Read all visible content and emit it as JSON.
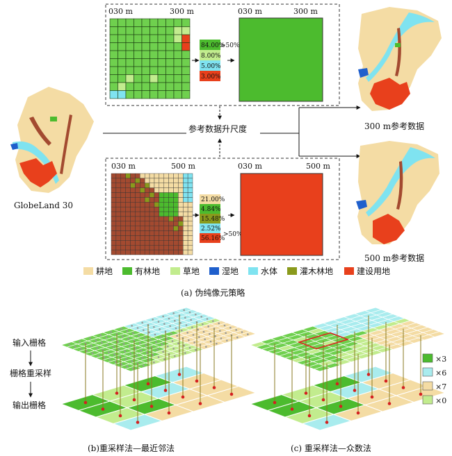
{
  "colors": {
    "cropland": "#f4dca4",
    "forest": "#4cbb2e",
    "grassland": "#c2ec8e",
    "wetland": "#1f5fcc",
    "water": "#7fe3f0",
    "shrubland": "#8a9a1c",
    "builtup": "#e8401c",
    "brown": "#a34a30",
    "grid_top": "#6fd04e"
  },
  "top_panel": {
    "grid_label_start": "030 m",
    "grid_label_end": "300 m",
    "result_label_start": "030 m",
    "result_label_end": "300 m",
    "bars": [
      {
        "text": "84.00%",
        "color": "forest"
      },
      {
        "text": "8.00%",
        "color": "grassland"
      },
      {
        "text": "5.00%",
        "color": "water"
      },
      {
        "text": "3.00%",
        "color": "builtup"
      }
    ],
    "threshold_label": ">50%"
  },
  "bottom_panel": {
    "grid_label_start": "030 m",
    "grid_label_end": "500 m",
    "result_label_start": "030 m",
    "result_label_end": "500 m",
    "bars": [
      {
        "text": "21.00%",
        "color": "cropland"
      },
      {
        "text": "4.84%",
        "color": "forest"
      },
      {
        "text": "15.48%",
        "color": "shrubland"
      },
      {
        "text": "2.52%",
        "color": "water"
      },
      {
        "text": "56.16%",
        "color": "builtup"
      }
    ],
    "threshold_label": ">50%"
  },
  "labels": {
    "middle": "参考数据升尺度",
    "source_map": "GlobeLand 30",
    "ref_300": "300 m参考数据",
    "ref_500": "500 m参考数据",
    "caption_a": "(a) 伪纯像元策略",
    "caption_b": "(b)重采样法—最近邻法",
    "caption_c": "(c) 重采样法—众数法",
    "input_grid": "输入栅格",
    "resample": "栅格重采样",
    "output_grid": "输出栅格"
  },
  "legend_main": [
    {
      "label": "耕地",
      "color": "cropland"
    },
    {
      "label": "有林地",
      "color": "forest"
    },
    {
      "label": "草地",
      "color": "grassland"
    },
    {
      "label": "湿地",
      "color": "wetland"
    },
    {
      "label": "水体",
      "color": "water"
    },
    {
      "label": "灌木林地",
      "color": "shrubland"
    },
    {
      "label": "建设用地",
      "color": "builtup"
    }
  ],
  "legend_counts": [
    {
      "label": "×3",
      "color": "#4cbb2e"
    },
    {
      "label": "×6",
      "color": "#a9ecee"
    },
    {
      "label": "×7",
      "color": "#f4dca4"
    },
    {
      "label": "×0",
      "color": "#c2ec8e"
    }
  ]
}
